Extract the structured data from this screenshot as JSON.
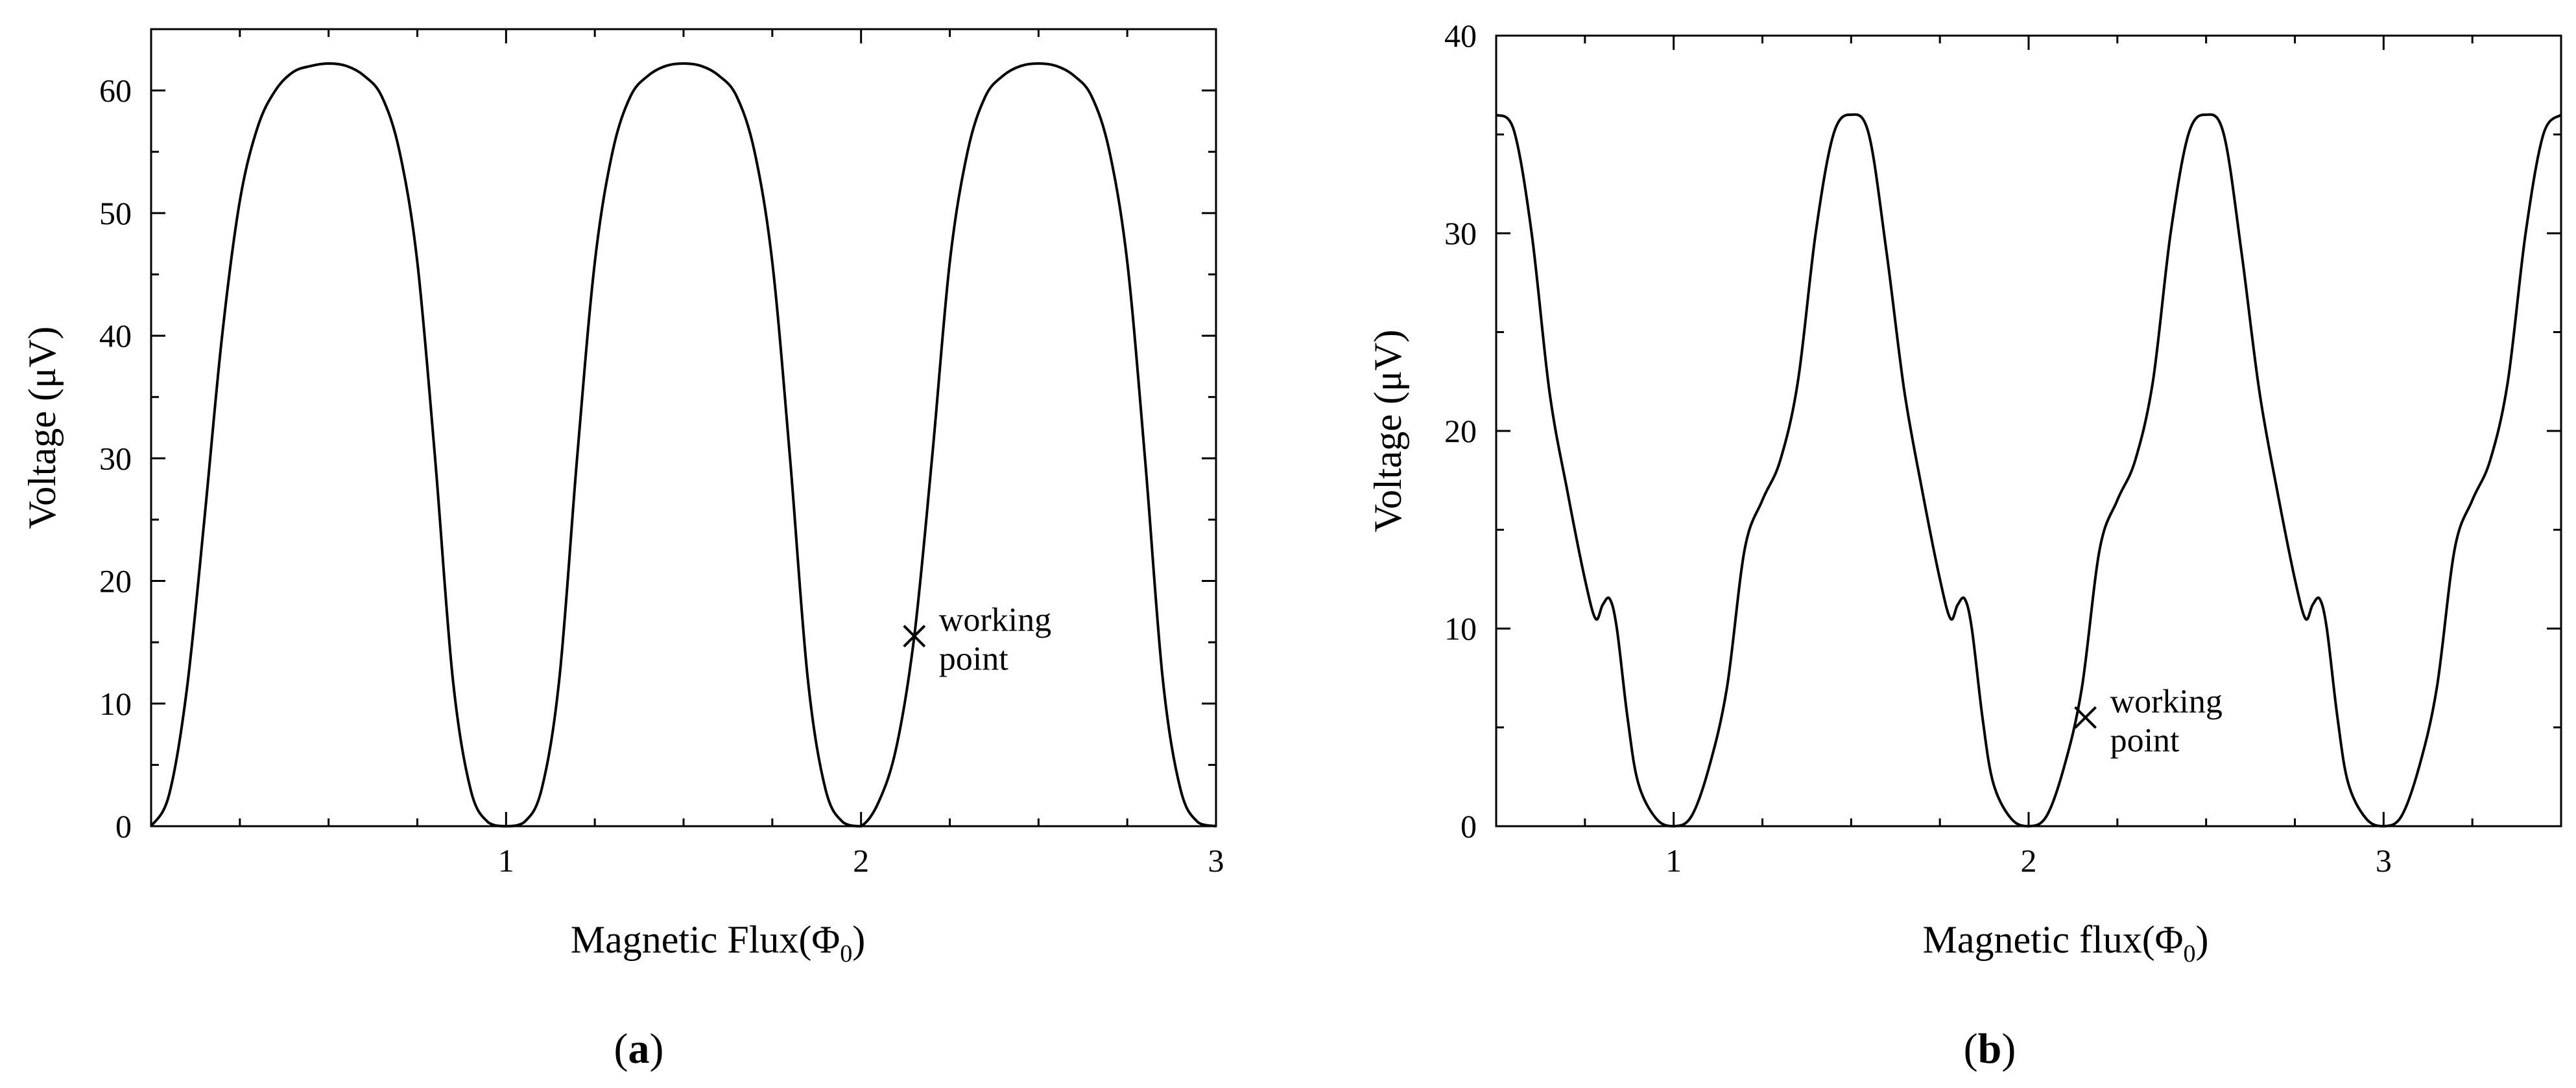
{
  "chart_data": [
    {
      "type": "line",
      "panel_label": "a",
      "xlabel": "Magnetic Flux(Φ0)",
      "xlabel_main": "Magnetic Flux(Φ",
      "xlabel_sub": "0",
      "xlabel_end": ")",
      "ylabel": "Voltage (μV)",
      "xlim": [
        0,
        3
      ],
      "ylim": [
        0,
        65
      ],
      "xticks": [
        "1",
        "2",
        "3"
      ],
      "yticks": [
        "0",
        "10",
        "20",
        "30",
        "40",
        "50",
        "60"
      ],
      "series": [
        {
          "x": [
            0,
            0.05,
            0.1,
            0.15,
            0.2,
            0.25,
            0.3,
            0.35,
            0.4,
            0.45,
            0.5,
            0.55,
            0.6,
            0.65,
            0.7,
            0.75,
            0.8,
            0.85,
            0.9,
            0.95,
            1.0,
            1.05,
            1.1,
            1.15,
            1.2,
            1.25,
            1.3,
            1.35,
            1.4,
            1.45,
            1.5,
            1.55,
            1.6,
            1.65,
            1.7,
            1.75,
            1.8,
            1.85,
            1.9,
            1.95,
            2.0,
            2.05,
            2.1,
            2.15,
            2.2,
            2.25,
            2.3,
            2.35,
            2.4,
            2.45,
            2.5,
            2.55,
            2.6,
            2.65,
            2.7,
            2.75,
            2.8,
            2.85,
            2.9,
            2.95,
            3.0
          ],
          "y": [
            0,
            2.5,
            11,
            25,
            40,
            51,
            57,
            60,
            61.5,
            62,
            62.2,
            62,
            61.2,
            59.5,
            55,
            46,
            30,
            12,
            3,
            0.3,
            0,
            0.3,
            3,
            12,
            30,
            46,
            55,
            59.5,
            61.2,
            62,
            62.2,
            62,
            61.2,
            59.5,
            55,
            46,
            30,
            12,
            3,
            0.3,
            0,
            2,
            6.5,
            15.5,
            30,
            46,
            55,
            59.5,
            61.2,
            62,
            62.2,
            62,
            61.2,
            59.5,
            55,
            46,
            30,
            12,
            3,
            0.3,
            0
          ]
        }
      ],
      "annotation": {
        "text_line1": "working",
        "text_line2": "point",
        "x": 2.15,
        "y": 15.5
      }
    },
    {
      "type": "line",
      "panel_label": "b",
      "xlabel": "Magnetic flux(Φ0)",
      "xlabel_main": "Magnetic flux(Φ",
      "xlabel_sub": "0",
      "xlabel_end": ")",
      "ylabel": "Voltage (μV)",
      "xlim": [
        0.5,
        3.5
      ],
      "ylim": [
        0,
        40
      ],
      "xticks": [
        "1",
        "2",
        "3"
      ],
      "yticks": [
        "0",
        "10",
        "20",
        "30",
        "40"
      ],
      "series": [
        {
          "x": [
            0.5,
            0.55,
            0.6,
            0.65,
            0.7,
            0.75,
            0.78,
            0.8,
            0.82,
            0.84,
            0.87,
            0.9,
            0.95,
            1.0,
            1.05,
            1.1,
            1.15,
            1.2,
            1.25,
            1.3,
            1.35,
            1.4,
            1.45,
            1.5,
            1.55,
            1.6,
            1.65,
            1.7,
            1.75,
            1.78,
            1.8,
            1.82,
            1.84,
            1.87,
            1.9,
            1.95,
            2.0,
            2.05,
            2.1,
            2.15,
            2.2,
            2.25,
            2.3,
            2.35,
            2.4,
            2.45,
            2.5,
            2.55,
            2.6,
            2.65,
            2.7,
            2.75,
            2.78,
            2.8,
            2.82,
            2.84,
            2.87,
            2.9,
            2.95,
            3.0,
            3.05,
            3.1,
            3.15,
            3.2,
            3.25,
            3.3,
            3.35,
            3.4,
            3.45,
            3.5
          ],
          "y": [
            36,
            35.2,
            30,
            22,
            17,
            12.5,
            10.5,
            11.2,
            11.5,
            10,
            5.5,
            2.2,
            0.4,
            0,
            0.5,
            3,
            7,
            14,
            16.5,
            18.5,
            22.5,
            30,
            35,
            36,
            35,
            29,
            22,
            17,
            12.5,
            10.5,
            11.2,
            11.5,
            10,
            5.5,
            2.2,
            0.4,
            0,
            0.5,
            3,
            7,
            14,
            16.5,
            18.5,
            22.5,
            30,
            35,
            36,
            35,
            29,
            22,
            17,
            12.5,
            10.5,
            11.2,
            11.5,
            10,
            5.5,
            2.2,
            0.4,
            0,
            0.5,
            3,
            7,
            14,
            16.5,
            18.5,
            22.5,
            30,
            35,
            36
          ]
        }
      ],
      "annotation": {
        "text_line1": "working",
        "text_line2": "point",
        "x": 2.16,
        "y": 5.5
      }
    }
  ]
}
